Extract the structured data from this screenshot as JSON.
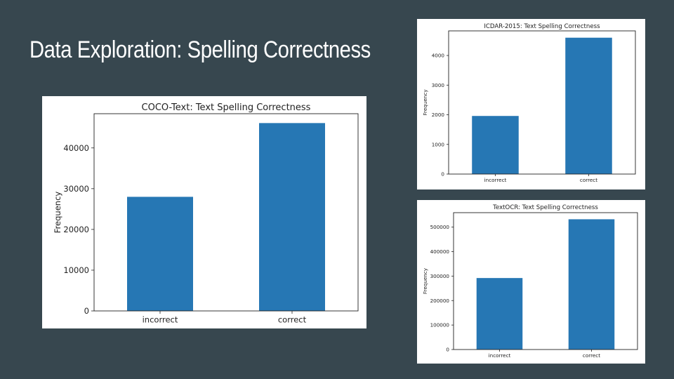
{
  "slide": {
    "title": "Data Exploration: Spelling Correctness"
  },
  "colors": {
    "background": "#37474f",
    "bar": "#2677b4",
    "panel": "#ffffff"
  },
  "chart_data": [
    {
      "type": "bar",
      "title": "COCO-Text: Text Spelling Correctness",
      "xlabel": "",
      "ylabel": "Frequency",
      "categories": [
        "incorrect",
        "correct"
      ],
      "values": [
        28000,
        46100
      ],
      "ylim": [
        0,
        48400
      ],
      "yticks": [
        0,
        10000,
        20000,
        30000,
        40000
      ],
      "grid": false
    },
    {
      "type": "bar",
      "title": "ICDAR-2015: Text Spelling Correctness",
      "xlabel": "",
      "ylabel": "Frequency",
      "categories": [
        "incorrect",
        "correct"
      ],
      "values": [
        1960,
        4600
      ],
      "ylim": [
        0,
        4830
      ],
      "yticks": [
        0,
        1000,
        2000,
        3000,
        4000
      ],
      "grid": false
    },
    {
      "type": "bar",
      "title": "TextOCR: Text Spelling Correctness",
      "xlabel": "",
      "ylabel": "Frequency",
      "categories": [
        "incorrect",
        "correct"
      ],
      "values": [
        292000,
        532000
      ],
      "ylim": [
        0,
        559000
      ],
      "yticks": [
        0,
        100000,
        200000,
        300000,
        400000,
        500000
      ],
      "grid": false
    }
  ]
}
